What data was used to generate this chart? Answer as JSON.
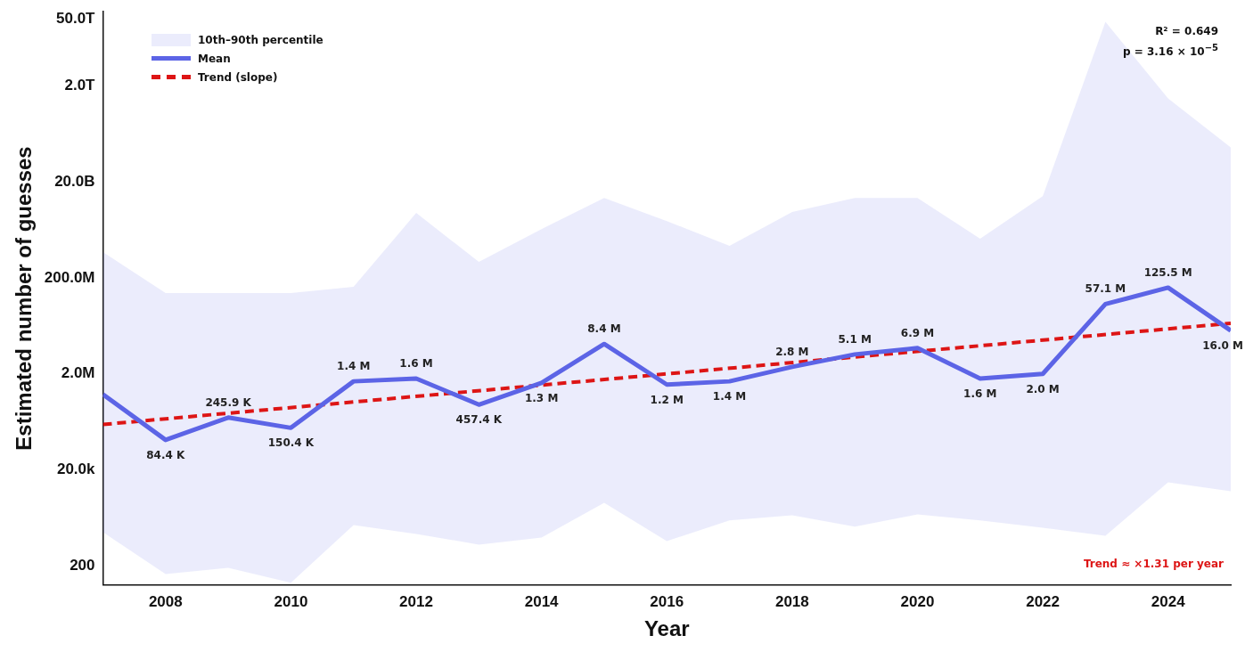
{
  "chart_data": {
    "type": "line",
    "xlabel": "Year",
    "ylabel": "Estimated number of guesses",
    "x": [
      2007,
      2008,
      2009,
      2010,
      2011,
      2012,
      2013,
      2014,
      2015,
      2016,
      2017,
      2018,
      2019,
      2020,
      2021,
      2022,
      2023,
      2024,
      2025
    ],
    "series": [
      {
        "name": "Mean",
        "color": "#5c64e6",
        "values": [
          750000,
          84400,
          245900,
          150400,
          1400000,
          1600000,
          457400,
          1300000,
          8400000,
          1200000,
          1400000,
          2800000,
          5100000,
          6900000,
          1600000,
          2000000,
          57100000,
          125500000,
          16000000
        ],
        "value_labels": [
          null,
          "84.4 K",
          "245.9 K",
          "150.4 K",
          "1.4 M",
          "1.6 M",
          "457.4 K",
          "1.3 M",
          "8.4 M",
          "1.2 M",
          "1.4 M",
          "2.8 M",
          "5.1 M",
          "6.9 M",
          "1.6 M",
          "2.0 M",
          "57.1 M",
          "125.5 M",
          "16.0 M"
        ],
        "lower": [
          1010,
          136,
          183,
          89,
          1420,
          930,
          557,
          781,
          4130,
          660,
          1770,
          2270,
          1310,
          2370,
          1770,
          1250,
          850,
          11000,
          7200
        ],
        "upper": [
          690000000,
          97000000,
          97000000,
          97000000,
          131000000,
          4500000000,
          431000000,
          2080000000,
          9300000000,
          3060000000,
          928000000,
          4700000000,
          9300000000,
          9300000000,
          1310000000,
          10100000000,
          43000000000000,
          1100000000000,
          105000000000
        ]
      },
      {
        "name": "Trend (slope)",
        "color": "#dd1515",
        "line_style": "dashed",
        "x": [
          2007,
          2025
        ],
        "values": [
          177000,
          22700000
        ]
      }
    ],
    "log": "y",
    "xlim": [
      2007,
      2025
    ],
    "xticks": [
      2008,
      2010,
      2012,
      2014,
      2016,
      2018,
      2020,
      2022,
      2024
    ],
    "ylim": [
      80,
      70000000000000
    ],
    "yticks": [
      200,
      {
        "value": 20000,
        "label": "20.0k"
      },
      {
        "value": 2000000,
        "label": "2.0M"
      },
      {
        "value": 200000000,
        "label": "200.0M"
      },
      {
        "value": 20000000000,
        "label": "20.0B"
      },
      {
        "value": 2000000000000,
        "label": "2.0T"
      },
      {
        "value": 50000000000000,
        "label": "50.0T"
      }
    ],
    "grid": false,
    "legend": "top left",
    "marker": "none",
    "annotations": [
      "10th–90th percentile",
      "R² = 0.649",
      "p = 3.16 × 10$^{−5}$",
      "Trend ≈ ×1.31 per year"
    ]
  }
}
